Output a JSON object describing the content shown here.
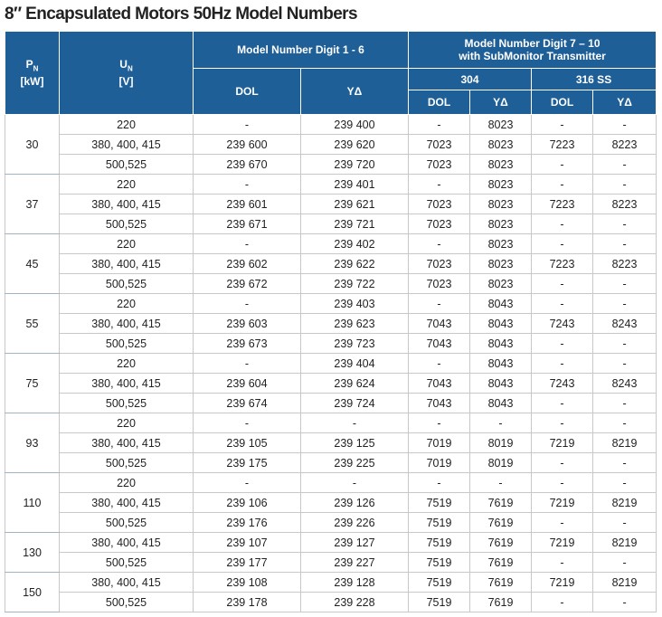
{
  "title": "8″ Encapsulated Motors 50Hz Model Numbers",
  "header": {
    "pn": [
      "P",
      "N",
      "[kW]"
    ],
    "un": [
      "U",
      "N",
      "[V]"
    ],
    "digit_1_6": "Model Number Digit 1 - 6",
    "digit_7_10": [
      "Model Number Digit 7 – 10",
      "with SubMonitor Transmitter"
    ],
    "dol_1_6": "DOL",
    "yd_1_6": "YΔ",
    "ss304": "304",
    "ss316": "316 SS",
    "dol_304": "DOL",
    "yd_304": "YΔ",
    "dol_316": "DOL",
    "yd_316": "YΔ"
  },
  "table": {
    "groups": [
      {
        "pn": "30",
        "rows": [
          [
            "220",
            "-",
            "239 400",
            "-",
            "8023",
            "-",
            "-"
          ],
          [
            "380, 400, 415",
            "239 600",
            "239 620",
            "7023",
            "8023",
            "7223",
            "8223"
          ],
          [
            "500,525",
            "239 670",
            "239 720",
            "7023",
            "8023",
            "-",
            "-"
          ]
        ]
      },
      {
        "pn": "37",
        "rows": [
          [
            "220",
            "-",
            "239 401",
            "-",
            "8023",
            "-",
            "-"
          ],
          [
            "380, 400, 415",
            "239 601",
            "239 621",
            "7023",
            "8023",
            "7223",
            "8223"
          ],
          [
            "500,525",
            "239 671",
            "239 721",
            "7023",
            "8023",
            "-",
            "-"
          ]
        ]
      },
      {
        "pn": "45",
        "rows": [
          [
            "220",
            "-",
            "239 402",
            "-",
            "8023",
            "-",
            "-"
          ],
          [
            "380, 400, 415",
            "239 602",
            "239 622",
            "7023",
            "8023",
            "7223",
            "8223"
          ],
          [
            "500,525",
            "239 672",
            "239 722",
            "7023",
            "8023",
            "-",
            "-"
          ]
        ]
      },
      {
        "pn": "55",
        "rows": [
          [
            "220",
            "-",
            "239 403",
            "-",
            "8043",
            "-",
            "-"
          ],
          [
            "380, 400, 415",
            "239 603",
            "239 623",
            "7043",
            "8043",
            "7243",
            "8243"
          ],
          [
            "500,525",
            "239 673",
            "239 723",
            "7043",
            "8043",
            "-",
            "-"
          ]
        ]
      },
      {
        "pn": "75",
        "rows": [
          [
            "220",
            "-",
            "239 404",
            "-",
            "8043",
            "-",
            "-"
          ],
          [
            "380, 400, 415",
            "239 604",
            "239 624",
            "7043",
            "8043",
            "7243",
            "8243"
          ],
          [
            "500,525",
            "239 674",
            "239 724",
            "7043",
            "8043",
            "-",
            "-"
          ]
        ]
      },
      {
        "pn": "93",
        "rows": [
          [
            "220",
            "-",
            "-",
            "-",
            "-",
            "-",
            "-"
          ],
          [
            "380, 400, 415",
            "239 105",
            "239 125",
            "7019",
            "8019",
            "7219",
            "8219"
          ],
          [
            "500,525",
            "239 175",
            "239 225",
            "7019",
            "8019",
            "-",
            "-"
          ]
        ]
      },
      {
        "pn": "110",
        "rows": [
          [
            "220",
            "-",
            "-",
            "-",
            "-",
            "-",
            "-"
          ],
          [
            "380, 400, 415",
            "239 106",
            "239 126",
            "7519",
            "7619",
            "7219",
            "8219"
          ],
          [
            "500,525",
            "239 176",
            "239 226",
            "7519",
            "7619",
            "-",
            "-"
          ]
        ]
      },
      {
        "pn": "130",
        "rows": [
          [
            "380, 400, 415",
            "239 107",
            "239 127",
            "7519",
            "7619",
            "7219",
            "8219"
          ],
          [
            "500,525",
            "239 177",
            "239 227",
            "7519",
            "7619",
            "-",
            "-"
          ]
        ]
      },
      {
        "pn": "150",
        "rows": [
          [
            "380, 400, 415",
            "239 108",
            "239 128",
            "7519",
            "7619",
            "7219",
            "8219"
          ],
          [
            "500,525",
            "239 178",
            "239 228",
            "7519",
            "7619",
            "-",
            "-"
          ]
        ]
      }
    ]
  }
}
